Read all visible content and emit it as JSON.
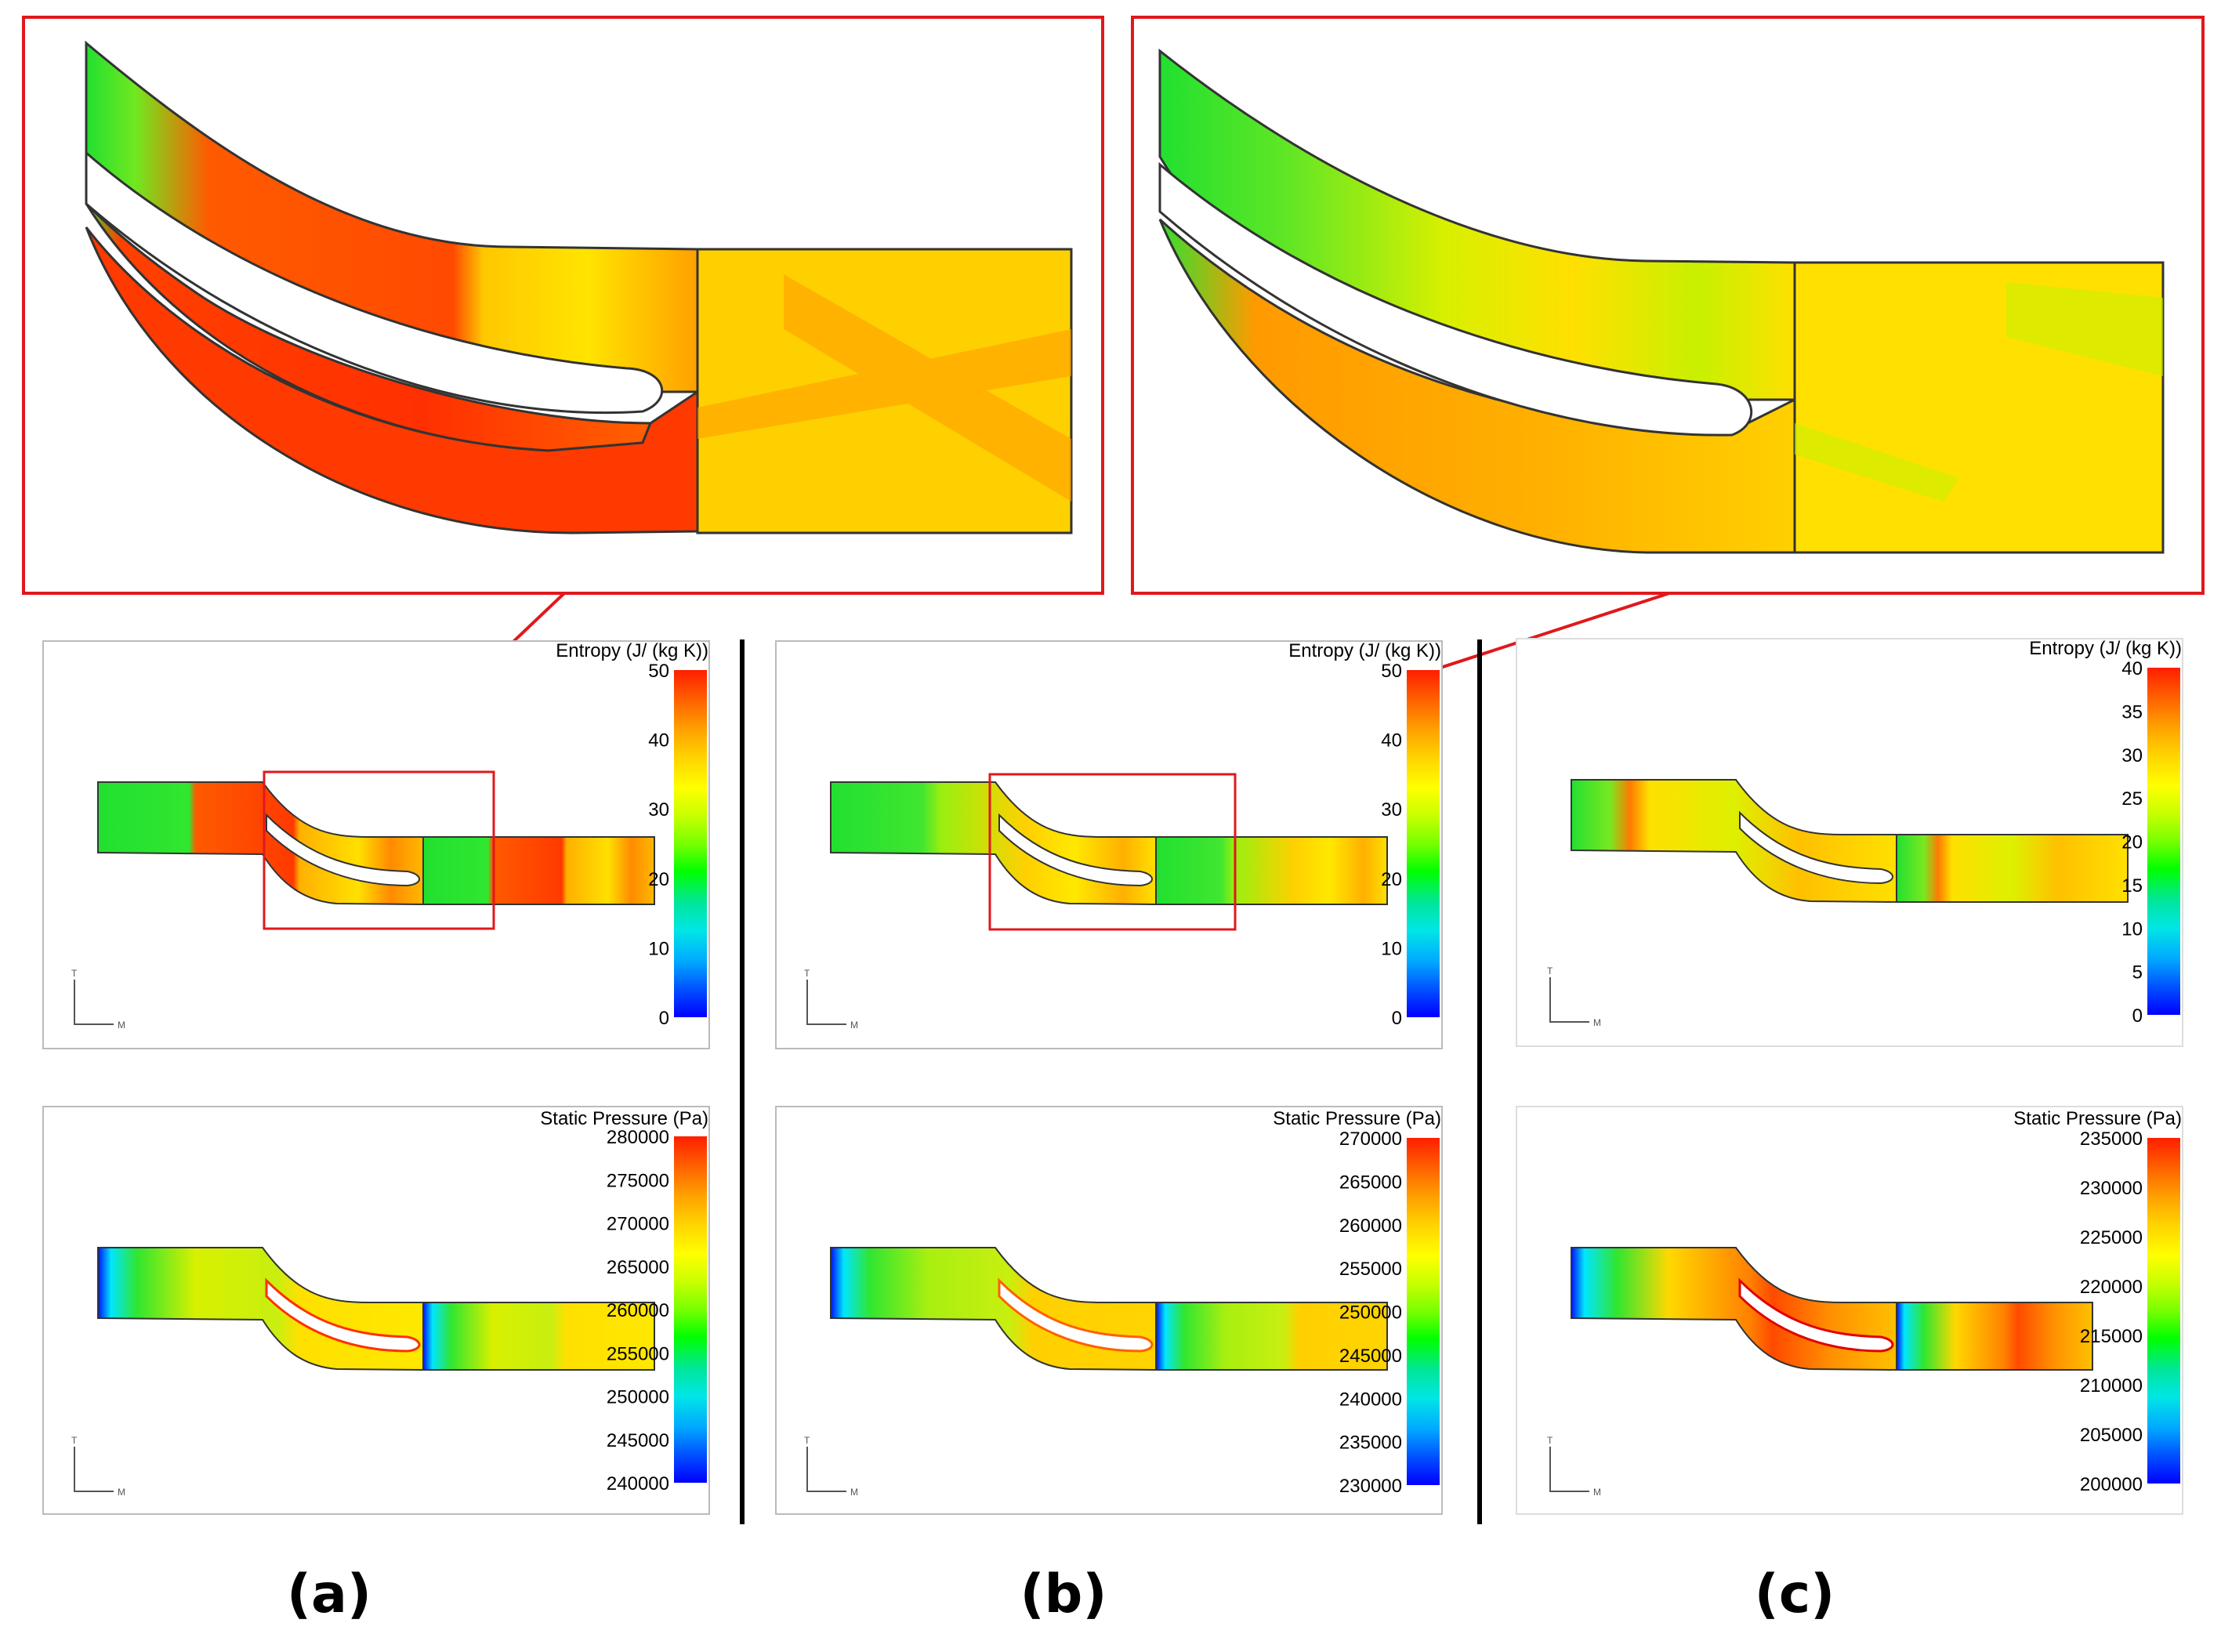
{
  "panels": [
    {
      "label": "(a)",
      "entropy": {
        "title": "Entropy (J/ (kg K))",
        "ticks": [
          "50",
          "40",
          "30",
          "20",
          "10",
          "0"
        ]
      },
      "pressure": {
        "title": "Static Pressure (Pa)",
        "ticks": [
          "280000",
          "275000",
          "270000",
          "265000",
          "260000",
          "255000",
          "250000",
          "245000",
          "240000"
        ]
      }
    },
    {
      "label": "(b)",
      "entropy": {
        "title": "Entropy (J/ (kg K))",
        "ticks": [
          "50",
          "40",
          "30",
          "20",
          "10",
          "0"
        ]
      },
      "pressure": {
        "title": "Static Pressure (Pa)",
        "ticks": [
          "270000",
          "265000",
          "260000",
          "255000",
          "250000",
          "245000",
          "240000",
          "235000",
          "230000"
        ]
      }
    },
    {
      "label": "(c)",
      "entropy": {
        "title": "Entropy (J/ (kg K))",
        "ticks": [
          "40",
          "35",
          "30",
          "25",
          "20",
          "15",
          "10",
          "5",
          "0"
        ]
      },
      "pressure": {
        "title": "Static Pressure (Pa)",
        "ticks": [
          "235000",
          "230000",
          "225000",
          "220000",
          "215000",
          "210000",
          "205000",
          "200000"
        ]
      }
    }
  ],
  "axis_triad": {
    "vertical": "T",
    "horizontal": "M"
  },
  "colors": {
    "highlight": "#e0181c",
    "divider": "#000000",
    "colormap": [
      "#0000ff",
      "#0050ff",
      "#00a8ff",
      "#00e6e6",
      "#00e69a",
      "#00ff00",
      "#78ff00",
      "#c8ff00",
      "#ffff00",
      "#ffd200",
      "#ffa000",
      "#ff6400",
      "#ff1e00"
    ]
  }
}
